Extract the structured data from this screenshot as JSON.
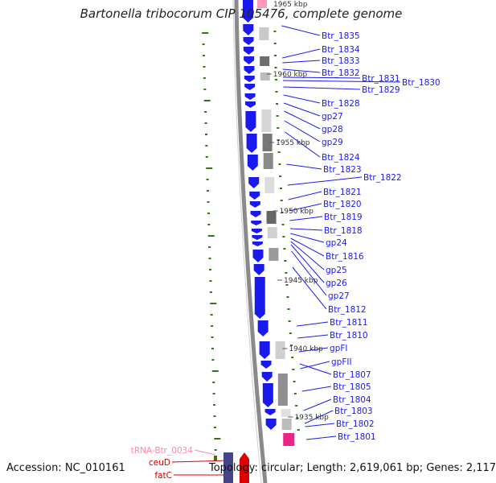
{
  "title": "Bartonella tribocorum CIP 105476, complete genome",
  "accession": "Accession: NC_010161",
  "summary": "Topology: circular; Length: 2,619,061 bp; Genes: 2,117",
  "scale_top_label": "1965 kbp",
  "colors": {
    "cds": "#1a1aee",
    "trna": "#ff99bb",
    "rna_gene": "#dd0000",
    "gc_tick": "#2a7a10",
    "label_line": "#1a1aee",
    "pink_feature": "#ee2288"
  },
  "position_labels": [
    {
      "text": "1960 kbp"
    },
    {
      "text": "1955 kbp"
    },
    {
      "text": "1950 kbp"
    },
    {
      "text": "1945 kbp"
    },
    {
      "text": "1940 kbp"
    },
    {
      "text": "1935 kbp"
    }
  ],
  "gene_labels": [
    "Btr_1835",
    "Btr_1834",
    "Btr_1833",
    "Btr_1832",
    "Btr_1831",
    "Btr_1830",
    "Btr_1829",
    "Btr_1828",
    "gp27",
    "gp28",
    "gp29",
    "Btr_1824",
    "Btr_1823",
    "Btr_1822",
    "Btr_1821",
    "Btr_1820",
    "Btr_1819",
    "Btr_1818",
    "gp24",
    "Btr_1816",
    "gp25",
    "gp26",
    "gp27",
    "Btr_1812",
    "Btr_1811",
    "Btr_1810",
    "gpFI",
    "gpFII",
    "Btr_1807",
    "Btr_1805",
    "Btr_1804",
    "Btr_1803",
    "Btr_1802",
    "Btr_1801"
  ],
  "left_labels": [
    "tRNA-Btr_0034",
    "ceuD",
    "fatC"
  ]
}
